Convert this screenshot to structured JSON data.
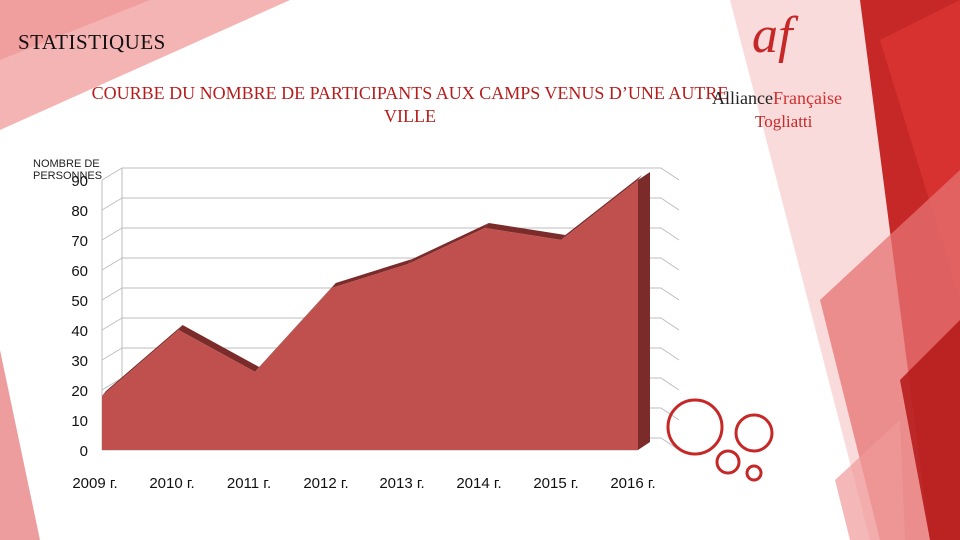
{
  "slide": {
    "title": "STATISTIQUES"
  },
  "logo": {
    "mark": "af",
    "name_part1": "Alliance",
    "name_part2": "Française",
    "city": "Togliatti"
  },
  "chart_data": {
    "type": "area",
    "title": "COURBE DU NOMBRE DE PARTICIPANTS AUX CAMPS VENUS D’UNE AUTRE VILLE",
    "ylabel": "NOMBRE DE PERSONNES",
    "xlabel": "",
    "categories": [
      "2009 г.",
      "2010 г.",
      "2011 г.",
      "2012 г.",
      "2013 г.",
      "2014 г.",
      "2015 г.",
      "2016 г."
    ],
    "values": [
      18,
      40,
      26,
      54,
      62,
      74,
      70,
      90
    ],
    "ylim": [
      0,
      90
    ],
    "yticks": [
      "0",
      "10",
      "20",
      "30",
      "40",
      "50",
      "60",
      "70",
      "80",
      "90"
    ],
    "grid": true,
    "colors": {
      "fill": "#c0504d",
      "side": "#7b2c2a",
      "grid": "#bdbdbd"
    }
  }
}
